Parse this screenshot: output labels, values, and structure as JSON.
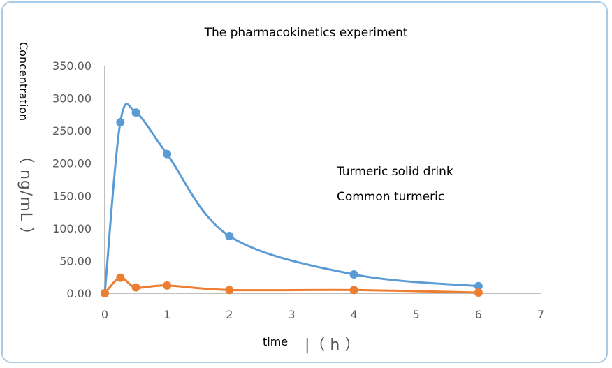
{
  "chart_data": {
    "type": "line",
    "title": "The pharmacokinetics experiment",
    "ylabel": "Concentration",
    "ylabel_unit": "（ ng/mL ）",
    "xlabel": "time",
    "xlabel_unit": "|（ h ）",
    "xlim": [
      0,
      7
    ],
    "ylim": [
      0,
      350
    ],
    "xticks": [
      "0",
      "1",
      "2",
      "3",
      "4",
      "5",
      "6",
      "7"
    ],
    "yticks": [
      "0.00",
      "50.00",
      "100.00",
      "150.00",
      "200.00",
      "250.00",
      "300.00",
      "350.00"
    ],
    "grid": false,
    "smooth": true,
    "legend_placement": "right",
    "series": [
      {
        "name": "Turmeric solid drink",
        "color": "#5b9bd5",
        "x": [
          0,
          0.25,
          0.5,
          1,
          2,
          4,
          6
        ],
        "y": [
          0,
          263,
          278,
          214,
          88,
          29,
          11
        ]
      },
      {
        "name": "Common turmeric",
        "color": "#ed7d31",
        "x": [
          0,
          0.25,
          0.5,
          1,
          2,
          4,
          6
        ],
        "y": [
          0,
          24,
          9,
          12,
          5,
          5,
          1
        ]
      }
    ]
  }
}
